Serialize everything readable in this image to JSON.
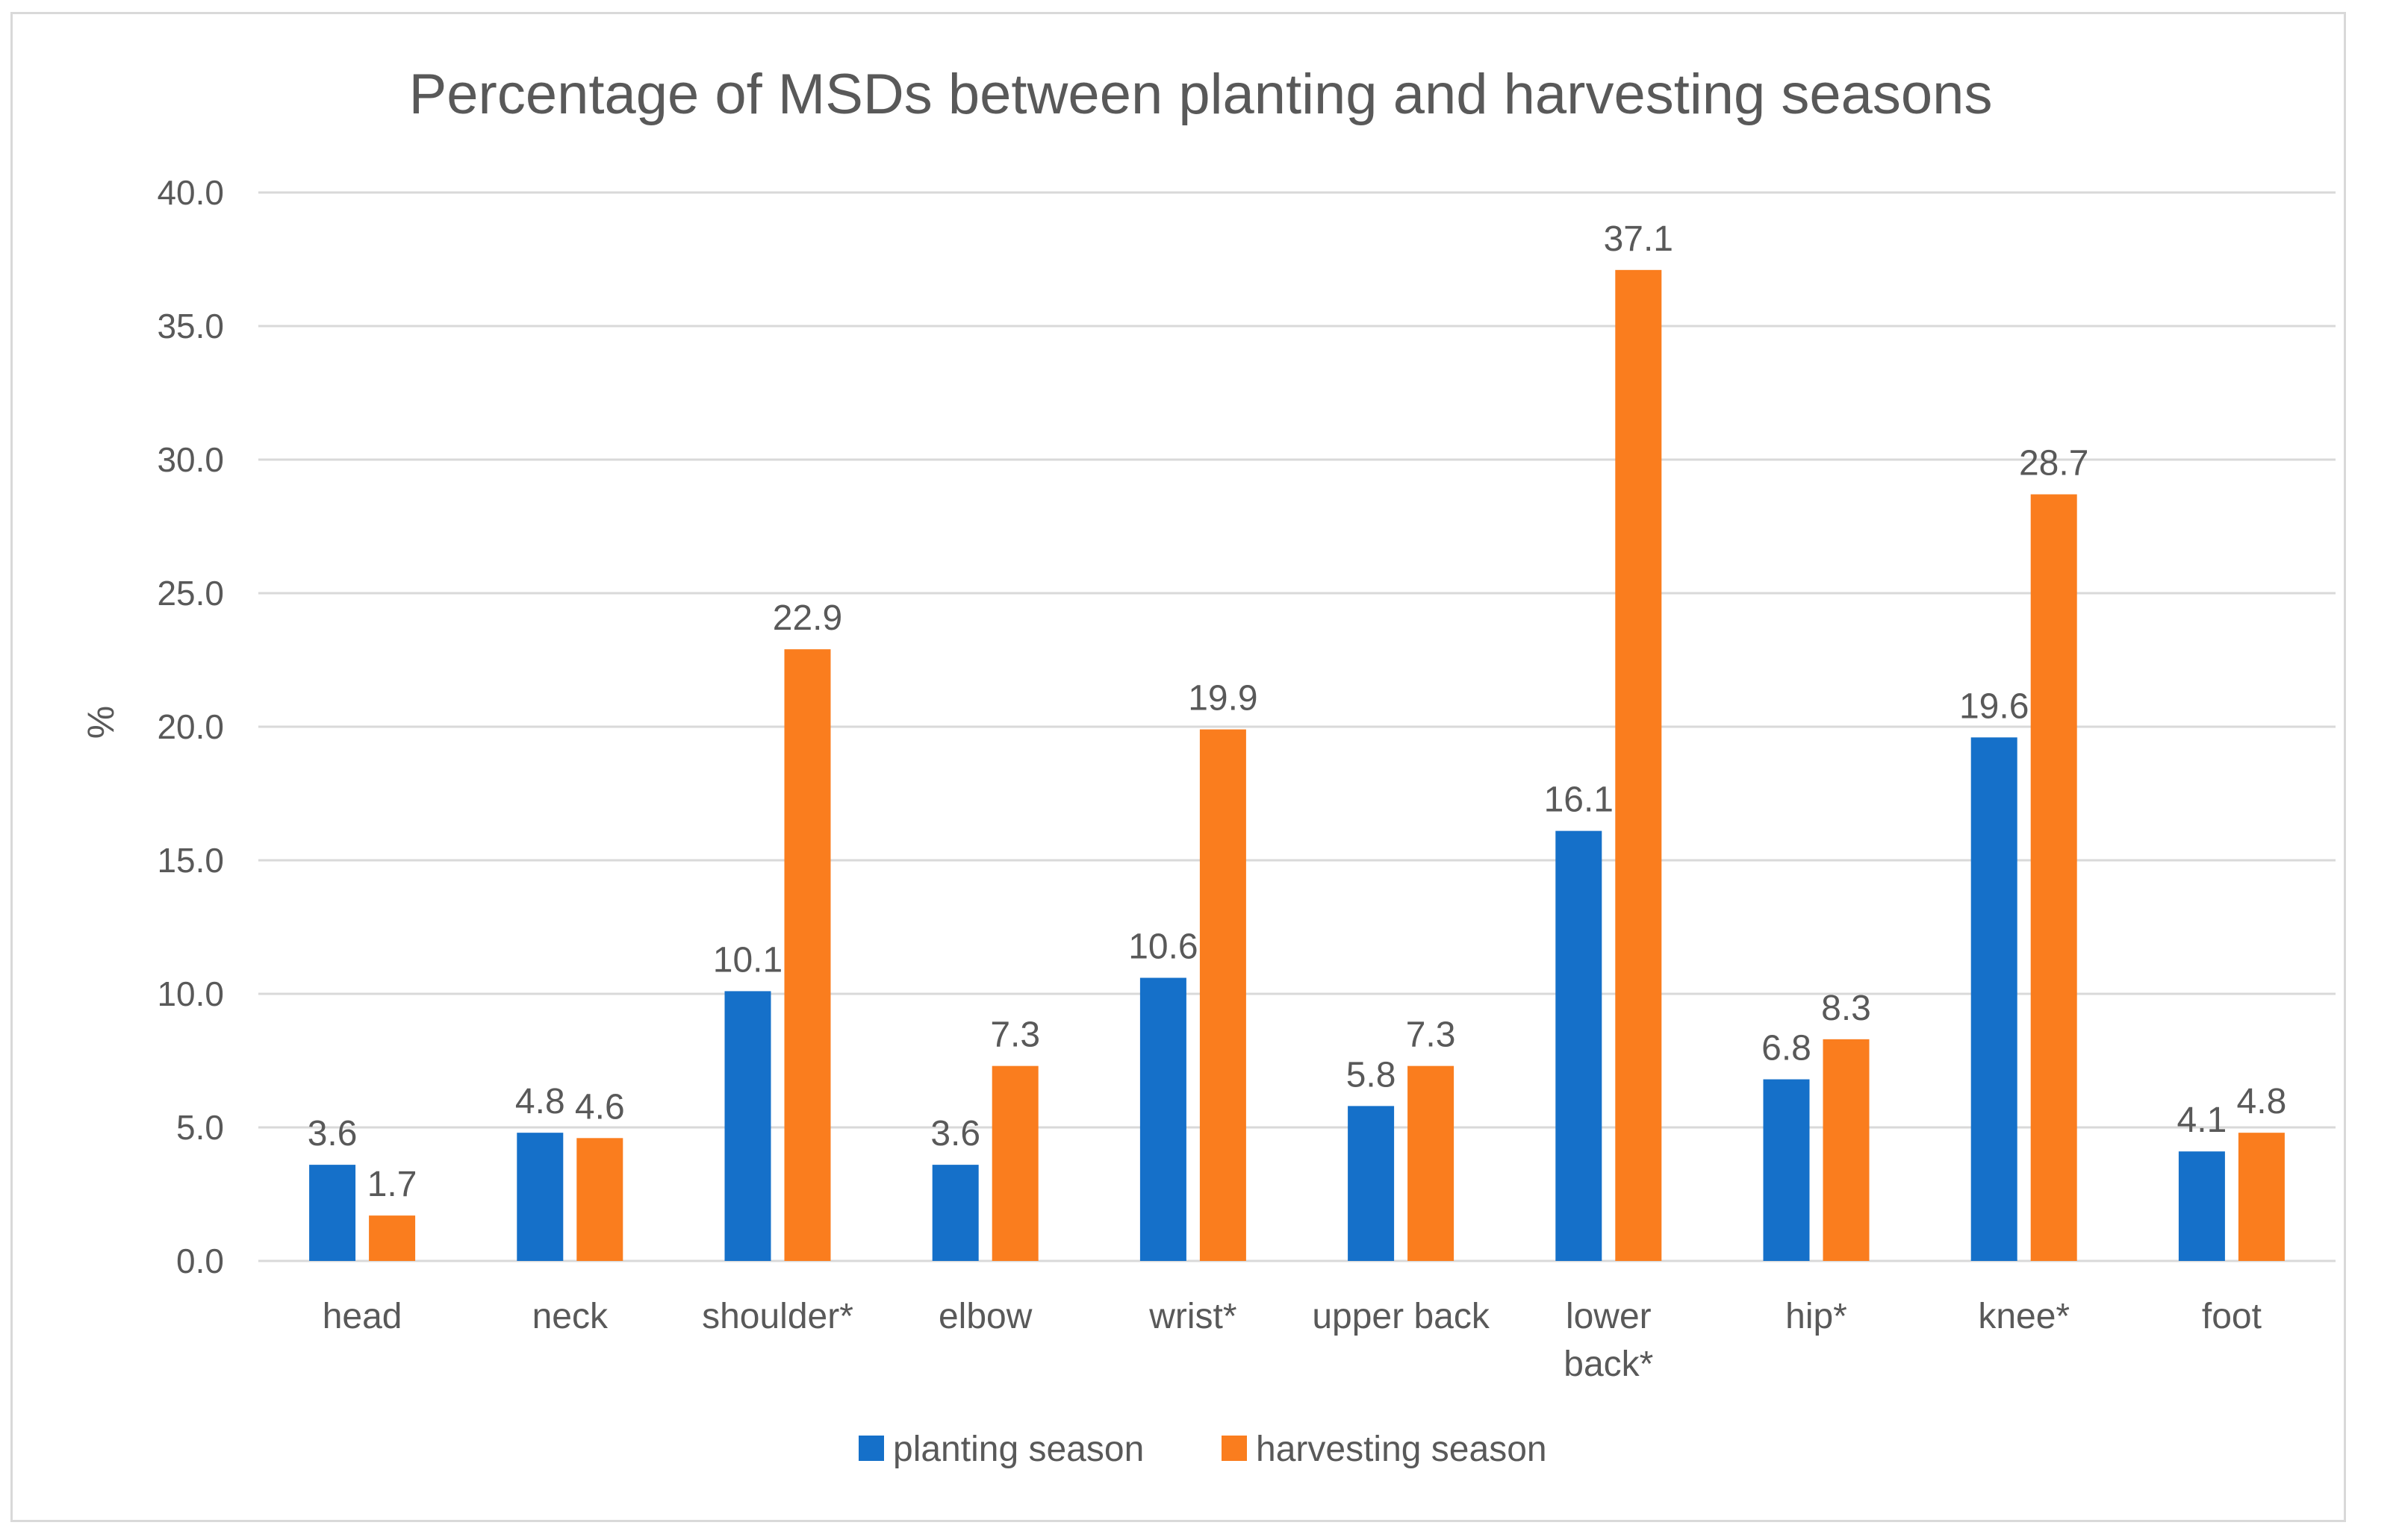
{
  "chart_data": {
    "type": "bar",
    "title": "Percentage of MSDs between planting and harvesting seasons",
    "xlabel": "",
    "ylabel": "%",
    "ylim": [
      0,
      40
    ],
    "ytick_step": 5,
    "ytick_labels": [
      "0.0",
      "5.0",
      "10.0",
      "15.0",
      "20.0",
      "25.0",
      "30.0",
      "35.0",
      "40.0"
    ],
    "grid": true,
    "legend_position": "bottom",
    "categories": [
      [
        "head"
      ],
      [
        "neck"
      ],
      [
        "shoulder*"
      ],
      [
        "elbow"
      ],
      [
        "wrist*"
      ],
      [
        "upper back"
      ],
      [
        "lower",
        "back*"
      ],
      [
        "hip*"
      ],
      [
        "knee*"
      ],
      [
        "foot"
      ]
    ],
    "series": [
      {
        "name": "planting season",
        "color": "#1570c9",
        "values": [
          3.6,
          4.8,
          10.1,
          3.6,
          10.6,
          5.8,
          16.1,
          6.8,
          19.6,
          4.1
        ],
        "labels": [
          "3.6",
          "4.8",
          "10.1",
          "3.6",
          "10.6",
          "5.8",
          "16.1",
          "6.8",
          "19.6",
          "4.1"
        ]
      },
      {
        "name": "harvesting season",
        "color": "#fa7d1e",
        "values": [
          1.7,
          4.6,
          22.9,
          7.3,
          19.9,
          7.3,
          37.1,
          8.3,
          28.7,
          4.8
        ],
        "labels": [
          "1.7",
          "4.6",
          "22.9",
          "7.3",
          "19.9",
          "7.3",
          "37.1",
          "8.3",
          "28.7",
          "4.8"
        ]
      }
    ],
    "gridline_color": "#d9d9d9",
    "text_color": "#595959"
  }
}
